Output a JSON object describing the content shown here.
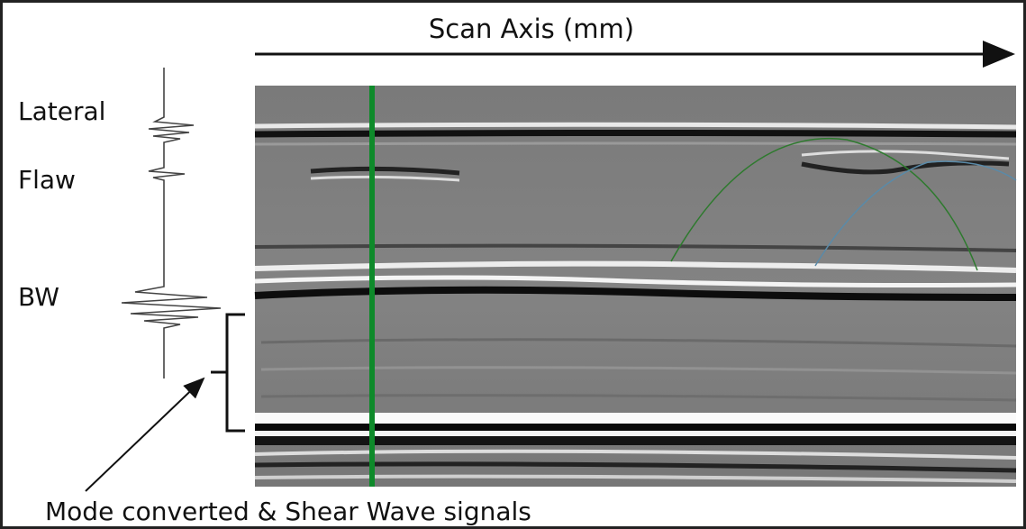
{
  "axis_label": "Scan Axis (mm)",
  "signal_labels": [
    "Lateral",
    "Flaw",
    "BW"
  ],
  "annotation": "Mode converted & Shear Wave signals"
}
